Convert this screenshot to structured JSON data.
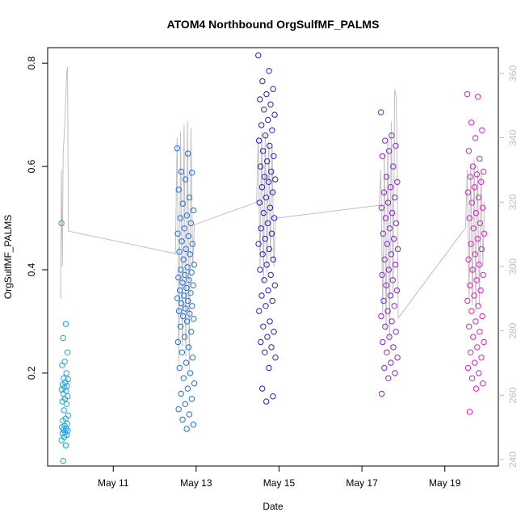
{
  "chart_data": {
    "type": "scatter",
    "title": "ATOM4 Northbound OrgSulfMF_PALMS",
    "xlabel": "Date",
    "ylabel": "OrgSulfMF_PALMS",
    "y_right_label": "",
    "x_range": [
      "2018-05-09T10:00",
      "2018-05-20T07:00"
    ],
    "ylim": [
      0.02,
      0.83
    ],
    "y_right_lim": [
      238,
      368
    ],
    "x_ticks": [
      {
        "date": "2018-05-11",
        "label": "May 11"
      },
      {
        "date": "2018-05-13",
        "label": "May 13"
      },
      {
        "date": "2018-05-15",
        "label": "May 15"
      },
      {
        "date": "2018-05-17",
        "label": "May 17"
      },
      {
        "date": "2018-05-19",
        "label": "May 19"
      }
    ],
    "y_ticks": [
      {
        "value": 0.2,
        "label": "0.2"
      },
      {
        "value": 0.4,
        "label": "0.4"
      },
      {
        "value": 0.6,
        "label": "0.6"
      },
      {
        "value": 0.8,
        "label": "0.8"
      }
    ],
    "y_right_ticks": [
      {
        "value": 240,
        "label": "240"
      },
      {
        "value": 260,
        "label": "260"
      },
      {
        "value": 280,
        "label": "280"
      },
      {
        "value": 300,
        "label": "300"
      },
      {
        "value": 320,
        "label": "320"
      },
      {
        "value": 340,
        "label": "340"
      },
      {
        "value": 360,
        "label": "360"
      }
    ],
    "flights": [
      {
        "start": "2018-05-09T18:00",
        "end": "2018-05-09T22:00",
        "color": "#1ca3ec",
        "values": [
          0.49,
          0.295,
          0.268,
          0.24,
          0.222,
          0.215,
          0.2,
          0.19,
          0.188,
          0.182,
          0.178,
          0.175,
          0.172,
          0.168,
          0.165,
          0.16,
          0.155,
          0.15,
          0.145,
          0.14,
          0.128,
          0.118,
          0.112,
          0.108,
          0.102,
          0.098,
          0.095,
          0.092,
          0.09,
          0.088,
          0.085,
          0.083,
          0.08,
          0.076,
          0.07,
          0.06,
          0.03
        ]
      },
      {
        "start": "2018-05-12T13:00",
        "end": "2018-05-12T23:00",
        "color": "#1a6ff0",
        "values": [
          0.635,
          0.625,
          0.59,
          0.588,
          0.575,
          0.555,
          0.54,
          0.528,
          0.515,
          0.505,
          0.5,
          0.49,
          0.48,
          0.47,
          0.465,
          0.455,
          0.45,
          0.44,
          0.435,
          0.43,
          0.42,
          0.41,
          0.405,
          0.4,
          0.395,
          0.39,
          0.385,
          0.38,
          0.375,
          0.37,
          0.365,
          0.36,
          0.355,
          0.35,
          0.345,
          0.34,
          0.335,
          0.33,
          0.325,
          0.32,
          0.315,
          0.31,
          0.305,
          0.3,
          0.29,
          0.28,
          0.27,
          0.26,
          0.25,
          0.24,
          0.23,
          0.22,
          0.21,
          0.2,
          0.19,
          0.18,
          0.17,
          0.16,
          0.15,
          0.14,
          0.13,
          0.12,
          0.11,
          0.1,
          0.092
        ]
      },
      {
        "start": "2018-05-14T12:00",
        "end": "2018-05-14T22:00",
        "color": "#2b18e0",
        "values": [
          0.815,
          0.785,
          0.765,
          0.75,
          0.74,
          0.73,
          0.72,
          0.71,
          0.7,
          0.69,
          0.68,
          0.67,
          0.66,
          0.65,
          0.64,
          0.63,
          0.62,
          0.61,
          0.6,
          0.59,
          0.58,
          0.575,
          0.57,
          0.56,
          0.55,
          0.54,
          0.53,
          0.52,
          0.51,
          0.5,
          0.49,
          0.48,
          0.47,
          0.46,
          0.45,
          0.44,
          0.43,
          0.42,
          0.41,
          0.4,
          0.39,
          0.38,
          0.37,
          0.36,
          0.35,
          0.34,
          0.33,
          0.32,
          0.3,
          0.29,
          0.28,
          0.27,
          0.26,
          0.25,
          0.24,
          0.23,
          0.21,
          0.17,
          0.155,
          0.145
        ]
      },
      {
        "start": "2018-05-17T11:00",
        "end": "2018-05-17T21:00",
        "color": "#8a22d8",
        "values": [
          0.705,
          0.66,
          0.65,
          0.64,
          0.63,
          0.62,
          0.6,
          0.58,
          0.57,
          0.56,
          0.55,
          0.54,
          0.53,
          0.52,
          0.51,
          0.5,
          0.49,
          0.48,
          0.47,
          0.46,
          0.45,
          0.44,
          0.43,
          0.42,
          0.41,
          0.4,
          0.39,
          0.38,
          0.37,
          0.36,
          0.35,
          0.34,
          0.33,
          0.32,
          0.31,
          0.3,
          0.29,
          0.28,
          0.27,
          0.26,
          0.25,
          0.24,
          0.23,
          0.22,
          0.21,
          0.2,
          0.19,
          0.16
        ]
      },
      {
        "start": "2018-05-19T13:00",
        "end": "2018-05-19T23:00",
        "color": "#e81eb8",
        "values": [
          0.74,
          0.735,
          0.685,
          0.67,
          0.655,
          0.63,
          0.615,
          0.6,
          0.59,
          0.585,
          0.58,
          0.57,
          0.56,
          0.55,
          0.54,
          0.53,
          0.52,
          0.51,
          0.5,
          0.49,
          0.48,
          0.47,
          0.46,
          0.45,
          0.44,
          0.43,
          0.42,
          0.41,
          0.4,
          0.39,
          0.38,
          0.37,
          0.36,
          0.35,
          0.34,
          0.33,
          0.32,
          0.31,
          0.3,
          0.29,
          0.28,
          0.27,
          0.26,
          0.25,
          0.24,
          0.23,
          0.22,
          0.21,
          0.2,
          0.19,
          0.18,
          0.17,
          0.125
        ]
      }
    ],
    "theta_trace": {
      "color": "#bfbfbf",
      "points": [
        {
          "date": "2018-05-09T17:30",
          "y2": 290
        },
        {
          "date": "2018-05-09T18:00",
          "y2": 330
        },
        {
          "date": "2018-05-09T18:30",
          "y2": 300
        },
        {
          "date": "2018-05-09T19:00",
          "y2": 335
        },
        {
          "date": "2018-05-09T20:00",
          "y2": 345
        },
        {
          "date": "2018-05-09T21:00",
          "y2": 360
        },
        {
          "date": "2018-05-09T21:30",
          "y2": 362
        },
        {
          "date": "2018-05-09T22:00",
          "y2": 311
        },
        {
          "date": "2018-05-12T12:00",
          "y2": 304
        },
        {
          "date": "2018-05-12T13:00",
          "y2": 340
        },
        {
          "date": "2018-05-12T14:00",
          "y2": 270
        },
        {
          "date": "2018-05-12T15:00",
          "y2": 342
        },
        {
          "date": "2018-05-12T16:00",
          "y2": 275
        },
        {
          "date": "2018-05-12T17:00",
          "y2": 344
        },
        {
          "date": "2018-05-12T18:00",
          "y2": 272
        },
        {
          "date": "2018-05-12T19:00",
          "y2": 345
        },
        {
          "date": "2018-05-12T20:00",
          "y2": 268
        },
        {
          "date": "2018-05-12T21:00",
          "y2": 343
        },
        {
          "date": "2018-05-12T22:00",
          "y2": 300
        },
        {
          "date": "2018-05-12T23:00",
          "y2": 313
        },
        {
          "date": "2018-05-14T11:00",
          "y2": 320
        },
        {
          "date": "2018-05-14T12:00",
          "y2": 340
        },
        {
          "date": "2018-05-14T13:00",
          "y2": 300
        },
        {
          "date": "2018-05-14T14:00",
          "y2": 342
        },
        {
          "date": "2018-05-14T15:00",
          "y2": 295
        },
        {
          "date": "2018-05-14T16:00",
          "y2": 341
        },
        {
          "date": "2018-05-14T17:00",
          "y2": 298
        },
        {
          "date": "2018-05-14T18:00",
          "y2": 339
        },
        {
          "date": "2018-05-14T19:00",
          "y2": 302
        },
        {
          "date": "2018-05-14T20:00",
          "y2": 338
        },
        {
          "date": "2018-05-14T21:00",
          "y2": 300
        },
        {
          "date": "2018-05-14T22:00",
          "y2": 315
        },
        {
          "date": "2018-05-17T10:00",
          "y2": 319
        },
        {
          "date": "2018-05-17T11:00",
          "y2": 330
        },
        {
          "date": "2018-05-17T12:00",
          "y2": 285
        },
        {
          "date": "2018-05-17T13:00",
          "y2": 335
        },
        {
          "date": "2018-05-17T14:00",
          "y2": 280
        },
        {
          "date": "2018-05-17T15:00",
          "y2": 340
        },
        {
          "date": "2018-05-17T16:00",
          "y2": 278
        },
        {
          "date": "2018-05-17T17:00",
          "y2": 345
        },
        {
          "date": "2018-05-17T18:00",
          "y2": 290
        },
        {
          "date": "2018-05-17T19:00",
          "y2": 355
        },
        {
          "date": "2018-05-17T20:00",
          "y2": 352
        },
        {
          "date": "2018-05-17T21:00",
          "y2": 284
        },
        {
          "date": "2018-05-19T12:00",
          "y2": 312
        },
        {
          "date": "2018-05-19T13:00",
          "y2": 330
        },
        {
          "date": "2018-05-19T14:00",
          "y2": 290
        },
        {
          "date": "2018-05-19T15:00",
          "y2": 332
        },
        {
          "date": "2018-05-19T16:00",
          "y2": 288
        },
        {
          "date": "2018-05-19T17:00",
          "y2": 333
        },
        {
          "date": "2018-05-19T18:00",
          "y2": 286
        },
        {
          "date": "2018-05-19T19:00",
          "y2": 331
        },
        {
          "date": "2018-05-19T20:00",
          "y2": 288
        },
        {
          "date": "2018-05-19T21:00",
          "y2": 330
        },
        {
          "date": "2018-05-19T22:00",
          "y2": 300
        },
        {
          "date": "2018-05-19T23:00",
          "y2": 320
        }
      ]
    },
    "grid": false,
    "legend": "none"
  }
}
